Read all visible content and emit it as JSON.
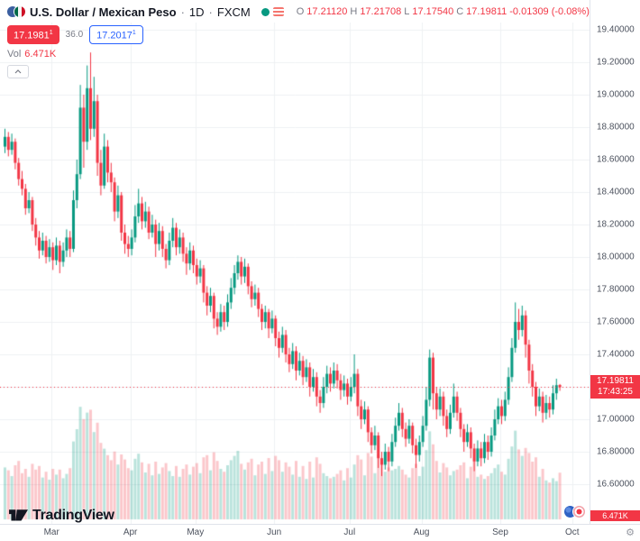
{
  "legend": {
    "symbol": "U.S. Dollar / Mexican Peso",
    "sep": "·",
    "interval": "1D",
    "exchange": "FXCM",
    "ohlc": {
      "o_label": "O",
      "o": "17.21120",
      "h_label": "H",
      "h": "17.21708",
      "l_label": "L",
      "l": "17.17540",
      "c_label": "C",
      "c": "17.19811",
      "change": "-0.01309",
      "change_pct": "(-0.08%)"
    },
    "vol_label": "Vol",
    "vol_value": "6.471K"
  },
  "trade_panel": {
    "sell_price": "17.1981",
    "sell_sup": "1",
    "spread": "36.0",
    "buy_price": "17.2017",
    "buy_sup": "1"
  },
  "price_axis": {
    "last_price_label": "17.19811",
    "countdown": "17:43:25",
    "volume_badge": "6.471K"
  },
  "logo": {
    "text": "TradingView"
  },
  "colors": {
    "up": "#089981",
    "down": "#f23645",
    "up_vol": "rgba(8,153,129,0.28)",
    "down_vol": "rgba(242,54,69,0.28)",
    "grid": "#eef0f3",
    "accent_blue": "#2962ff",
    "axis_text": "#4c525e"
  },
  "chart_data": {
    "type": "candlestick",
    "title": "U.S. Dollar / Mexican Peso",
    "symbol": "USDMXN",
    "exchange": "FXCM",
    "interval": "1D",
    "price_decimals": 5,
    "last_price": 17.19811,
    "grid": true,
    "ylim": [
      16.38,
      19.44
    ],
    "y_ticks": [
      19.4,
      19.2,
      19.0,
      18.8,
      18.6,
      18.4,
      18.2,
      18.0,
      17.8,
      17.6,
      17.4,
      17.2,
      17.0,
      16.8,
      16.6
    ],
    "x_ticks": [
      {
        "label": "Mar",
        "i": 14
      },
      {
        "label": "Apr",
        "i": 37
      },
      {
        "label": "May",
        "i": 56
      },
      {
        "label": "Jun",
        "i": 79
      },
      {
        "label": "Jul",
        "i": 101
      },
      {
        "label": "Aug",
        "i": 122
      },
      {
        "label": "Sep",
        "i": 145
      },
      {
        "label": "Oct",
        "i": 166
      }
    ],
    "columns": [
      "open",
      "high",
      "low",
      "close",
      "volume_k"
    ],
    "candles": [
      [
        18.68,
        18.79,
        18.64,
        18.74,
        7.2
      ],
      [
        18.74,
        18.77,
        18.62,
        18.66,
        6.8
      ],
      [
        18.66,
        18.76,
        18.63,
        18.71,
        6.0
      ],
      [
        18.71,
        18.73,
        18.54,
        18.58,
        7.5
      ],
      [
        18.58,
        18.61,
        18.44,
        18.48,
        8.1
      ],
      [
        18.48,
        18.53,
        18.38,
        18.42,
        6.4
      ],
      [
        18.42,
        18.45,
        18.26,
        18.3,
        7.0
      ],
      [
        18.3,
        18.4,
        18.27,
        18.35,
        5.9
      ],
      [
        18.35,
        18.37,
        18.16,
        18.2,
        7.7
      ],
      [
        18.2,
        18.24,
        18.07,
        18.12,
        6.9
      ],
      [
        18.12,
        18.16,
        17.99,
        18.04,
        7.4
      ],
      [
        18.04,
        18.15,
        18.01,
        18.1,
        5.8
      ],
      [
        18.1,
        18.13,
        17.96,
        18.0,
        6.6
      ],
      [
        18.0,
        18.11,
        17.97,
        18.06,
        5.5
      ],
      [
        18.06,
        18.09,
        17.92,
        17.98,
        7.0
      ],
      [
        17.98,
        18.12,
        17.95,
        18.07,
        6.2
      ],
      [
        18.07,
        18.1,
        17.9,
        17.97,
        6.9
      ],
      [
        17.97,
        18.09,
        17.94,
        18.04,
        5.7
      ],
      [
        18.04,
        18.17,
        18.0,
        18.12,
        6.3
      ],
      [
        18.12,
        18.16,
        18.0,
        18.05,
        7.1
      ],
      [
        18.05,
        18.41,
        18.03,
        18.35,
        10.8
      ],
      [
        18.35,
        18.6,
        18.3,
        18.51,
        12.5
      ],
      [
        18.51,
        19.06,
        18.48,
        18.92,
        15.6
      ],
      [
        18.92,
        19.0,
        18.55,
        18.71,
        13.9
      ],
      [
        18.71,
        19.18,
        18.66,
        19.04,
        14.8
      ],
      [
        19.04,
        19.26,
        18.72,
        18.79,
        15.2
      ],
      [
        18.79,
        19.11,
        18.74,
        18.96,
        12.1
      ],
      [
        18.96,
        19.0,
        18.5,
        18.58,
        13.4
      ],
      [
        18.58,
        18.66,
        18.38,
        18.44,
        10.6
      ],
      [
        18.44,
        18.76,
        18.42,
        18.68,
        9.8
      ],
      [
        18.68,
        18.72,
        18.46,
        18.52,
        8.9
      ],
      [
        18.52,
        18.58,
        18.4,
        18.46,
        8.2
      ],
      [
        18.46,
        18.49,
        18.22,
        18.28,
        9.4
      ],
      [
        18.28,
        18.44,
        18.24,
        18.38,
        7.6
      ],
      [
        18.38,
        18.4,
        18.1,
        18.15,
        9.0
      ],
      [
        18.15,
        18.2,
        18.02,
        18.08,
        8.3
      ],
      [
        18.08,
        18.13,
        18.0,
        18.05,
        7.1
      ],
      [
        18.05,
        18.17,
        18.01,
        18.12,
        6.8
      ],
      [
        18.12,
        18.32,
        18.09,
        18.25,
        8.4
      ],
      [
        18.25,
        18.42,
        18.21,
        18.33,
        9.1
      ],
      [
        18.33,
        18.37,
        18.17,
        18.22,
        7.9
      ],
      [
        18.22,
        18.34,
        18.18,
        18.28,
        6.5
      ],
      [
        18.28,
        18.31,
        18.11,
        18.15,
        7.7
      ],
      [
        18.15,
        18.26,
        18.12,
        18.2,
        6.1
      ],
      [
        18.2,
        18.23,
        18.0,
        18.08,
        8.0
      ],
      [
        18.08,
        18.21,
        18.04,
        18.16,
        6.3
      ],
      [
        18.16,
        18.19,
        18.0,
        18.05,
        7.2
      ],
      [
        18.05,
        18.08,
        17.93,
        17.98,
        7.8
      ],
      [
        17.98,
        18.15,
        17.95,
        18.1,
        6.7
      ],
      [
        18.1,
        18.24,
        18.06,
        18.18,
        6.0
      ],
      [
        18.18,
        18.21,
        18.01,
        18.06,
        7.4
      ],
      [
        18.06,
        18.17,
        18.02,
        18.12,
        5.9
      ],
      [
        18.12,
        18.15,
        17.97,
        18.02,
        7.0
      ],
      [
        18.02,
        18.06,
        17.89,
        17.96,
        7.6
      ],
      [
        17.96,
        18.09,
        17.92,
        18.04,
        6.2
      ],
      [
        18.04,
        18.07,
        17.9,
        17.95,
        7.3
      ],
      [
        17.95,
        17.99,
        17.83,
        17.88,
        7.8
      ],
      [
        17.88,
        17.98,
        17.84,
        17.93,
        6.4
      ],
      [
        17.93,
        17.95,
        17.72,
        17.78,
        8.6
      ],
      [
        17.78,
        17.82,
        17.64,
        17.7,
        8.9
      ],
      [
        17.7,
        17.81,
        17.66,
        17.76,
        6.8
      ],
      [
        17.76,
        17.78,
        17.56,
        17.62,
        9.3
      ],
      [
        17.62,
        17.66,
        17.52,
        17.57,
        8.1
      ],
      [
        17.57,
        17.71,
        17.54,
        17.66,
        7.0
      ],
      [
        17.66,
        17.7,
        17.55,
        17.6,
        6.6
      ],
      [
        17.6,
        17.77,
        17.57,
        17.72,
        7.5
      ],
      [
        17.72,
        17.87,
        17.68,
        17.81,
        8.2
      ],
      [
        17.81,
        17.95,
        17.77,
        17.9,
        8.8
      ],
      [
        17.9,
        18.01,
        17.86,
        17.97,
        9.5
      ],
      [
        17.97,
        18.0,
        17.83,
        17.88,
        7.7
      ],
      [
        17.88,
        17.99,
        17.84,
        17.94,
        6.9
      ],
      [
        17.94,
        17.96,
        17.77,
        17.82,
        7.9
      ],
      [
        17.82,
        17.85,
        17.69,
        17.74,
        8.4
      ],
      [
        17.74,
        17.83,
        17.7,
        17.78,
        6.1
      ],
      [
        17.78,
        17.81,
        17.63,
        17.68,
        7.6
      ],
      [
        17.68,
        17.71,
        17.55,
        17.6,
        8.0
      ],
      [
        17.6,
        17.7,
        17.56,
        17.66,
        6.3
      ],
      [
        17.66,
        17.68,
        17.5,
        17.56,
        8.5
      ],
      [
        17.56,
        17.67,
        17.53,
        17.62,
        6.7
      ],
      [
        17.62,
        17.64,
        17.45,
        17.5,
        8.8
      ],
      [
        17.5,
        17.54,
        17.38,
        17.44,
        8.2
      ],
      [
        17.44,
        17.57,
        17.41,
        17.52,
        6.6
      ],
      [
        17.52,
        17.55,
        17.35,
        17.4,
        7.9
      ],
      [
        17.4,
        17.44,
        17.29,
        17.34,
        7.3
      ],
      [
        17.34,
        17.47,
        17.31,
        17.42,
        6.2
      ],
      [
        17.42,
        17.45,
        17.24,
        17.3,
        8.1
      ],
      [
        17.3,
        17.41,
        17.27,
        17.36,
        5.9
      ],
      [
        17.36,
        17.39,
        17.21,
        17.26,
        7.4
      ],
      [
        17.26,
        17.37,
        17.23,
        17.32,
        5.6
      ],
      [
        17.32,
        17.35,
        17.14,
        17.2,
        8.0
      ],
      [
        17.2,
        17.31,
        17.17,
        17.26,
        5.8
      ],
      [
        17.26,
        17.29,
        17.08,
        17.14,
        8.6
      ],
      [
        17.14,
        17.18,
        17.04,
        17.1,
        7.7
      ],
      [
        17.1,
        17.26,
        17.07,
        17.2,
        6.4
      ],
      [
        17.2,
        17.33,
        17.16,
        17.28,
        6.0
      ],
      [
        17.28,
        17.32,
        17.17,
        17.22,
        5.7
      ],
      [
        17.22,
        17.35,
        17.19,
        17.3,
        5.9
      ],
      [
        17.3,
        17.34,
        17.19,
        17.24,
        6.3
      ],
      [
        17.24,
        17.28,
        17.12,
        17.18,
        6.8
      ],
      [
        17.18,
        17.27,
        17.14,
        17.22,
        5.4
      ],
      [
        17.22,
        17.25,
        17.09,
        17.14,
        7.1
      ],
      [
        17.14,
        17.26,
        17.11,
        17.2,
        5.8
      ],
      [
        17.2,
        17.4,
        17.16,
        17.28,
        7.6
      ],
      [
        17.28,
        17.31,
        17.02,
        17.08,
        8.9
      ],
      [
        17.08,
        17.12,
        16.94,
        17.0,
        8.3
      ],
      [
        17.0,
        17.11,
        16.97,
        17.06,
        6.1
      ],
      [
        17.06,
        17.08,
        16.86,
        16.92,
        9.2
      ],
      [
        16.92,
        16.95,
        16.79,
        16.84,
        8.7
      ],
      [
        16.84,
        16.96,
        16.81,
        16.9,
        6.4
      ],
      [
        16.9,
        16.92,
        16.7,
        16.76,
        9.0
      ],
      [
        16.76,
        16.8,
        16.65,
        16.72,
        8.4
      ],
      [
        16.72,
        16.85,
        16.69,
        16.8,
        6.6
      ],
      [
        16.8,
        16.83,
        16.68,
        16.74,
        7.2
      ],
      [
        16.74,
        16.91,
        16.71,
        16.86,
        6.8
      ],
      [
        16.86,
        17.01,
        16.83,
        16.96,
        7.0
      ],
      [
        16.96,
        17.1,
        16.93,
        17.04,
        7.4
      ],
      [
        17.04,
        17.07,
        16.89,
        16.94,
        6.9
      ],
      [
        16.94,
        16.98,
        16.83,
        16.88,
        6.2
      ],
      [
        16.88,
        17.0,
        16.85,
        16.96,
        5.8
      ],
      [
        16.96,
        16.98,
        16.79,
        16.84,
        7.1
      ],
      [
        16.84,
        16.88,
        16.7,
        16.78,
        7.7
      ],
      [
        16.78,
        16.9,
        16.74,
        16.86,
        6.0
      ],
      [
        16.86,
        17.02,
        16.83,
        16.96,
        7.3
      ],
      [
        16.96,
        17.2,
        16.93,
        17.12,
        9.6
      ],
      [
        17.12,
        17.43,
        17.08,
        17.38,
        12.2
      ],
      [
        17.38,
        17.41,
        17.06,
        17.16,
        10.4
      ],
      [
        17.16,
        17.2,
        17.0,
        17.06,
        8.1
      ],
      [
        17.06,
        17.19,
        17.02,
        17.14,
        6.5
      ],
      [
        17.14,
        17.17,
        16.96,
        17.02,
        7.8
      ],
      [
        17.02,
        17.06,
        16.89,
        16.94,
        7.2
      ],
      [
        16.94,
        17.09,
        16.91,
        17.04,
        6.1
      ],
      [
        17.04,
        17.22,
        17.01,
        17.14,
        6.7
      ],
      [
        17.14,
        17.17,
        16.99,
        17.04,
        6.9
      ],
      [
        17.04,
        17.07,
        16.89,
        16.94,
        7.5
      ],
      [
        16.94,
        16.97,
        16.8,
        16.86,
        7.9
      ],
      [
        16.86,
        16.97,
        16.83,
        16.92,
        5.7
      ],
      [
        16.92,
        16.95,
        16.76,
        16.82,
        7.3
      ],
      [
        16.82,
        16.85,
        16.68,
        16.74,
        8.0
      ],
      [
        16.74,
        16.87,
        16.71,
        16.82,
        5.9
      ],
      [
        16.82,
        16.86,
        16.71,
        16.76,
        6.2
      ],
      [
        16.76,
        16.91,
        16.73,
        16.86,
        5.6
      ],
      [
        16.86,
        16.9,
        16.75,
        16.8,
        6.0
      ],
      [
        16.8,
        16.95,
        16.77,
        16.9,
        6.4
      ],
      [
        16.9,
        17.06,
        16.87,
        17.0,
        7.1
      ],
      [
        17.0,
        17.13,
        16.97,
        17.08,
        7.6
      ],
      [
        17.08,
        17.12,
        16.97,
        17.02,
        6.6
      ],
      [
        17.02,
        17.17,
        16.99,
        17.12,
        6.2
      ],
      [
        17.12,
        17.32,
        17.09,
        17.26,
        8.4
      ],
      [
        17.26,
        17.5,
        17.23,
        17.44,
        10.1
      ],
      [
        17.44,
        17.72,
        17.41,
        17.6,
        12.3
      ],
      [
        17.6,
        17.68,
        17.49,
        17.55,
        9.7
      ],
      [
        17.55,
        17.7,
        17.51,
        17.64,
        8.8
      ],
      [
        17.64,
        17.67,
        17.38,
        17.46,
        9.9
      ],
      [
        17.46,
        17.49,
        17.22,
        17.3,
        9.2
      ],
      [
        17.3,
        17.34,
        17.14,
        17.2,
        8.0
      ],
      [
        17.2,
        17.23,
        17.02,
        17.08,
        8.6
      ],
      [
        17.08,
        17.19,
        17.05,
        17.14,
        5.9
      ],
      [
        17.14,
        17.17,
        16.98,
        17.04,
        7.0
      ],
      [
        17.04,
        17.15,
        17.0,
        17.1,
        5.4
      ],
      [
        17.1,
        17.14,
        17.01,
        17.06,
        5.1
      ],
      [
        17.06,
        17.21,
        17.03,
        17.16,
        5.7
      ],
      [
        17.16,
        17.25,
        17.12,
        17.21,
        5.3
      ],
      [
        17.2112,
        17.2171,
        17.1754,
        17.1981,
        6.471
      ]
    ]
  }
}
